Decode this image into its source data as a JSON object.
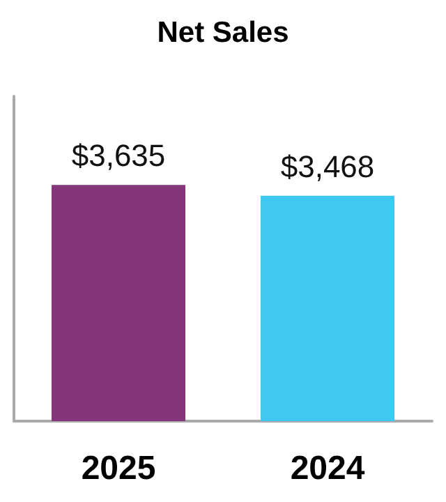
{
  "chart_data": {
    "type": "bar",
    "title": "Net Sales",
    "categories": [
      "2025",
      "2024"
    ],
    "values": [
      3635,
      3468
    ],
    "colors": [
      "#85367b",
      "#3ec8f2"
    ],
    "value_labels": [
      "$3,635",
      "$3,468"
    ],
    "ylim": [
      0,
      5000
    ],
    "tick_labels": "x"
  }
}
